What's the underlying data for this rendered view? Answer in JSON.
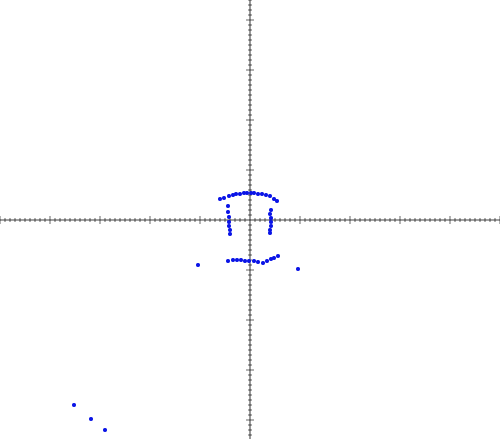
{
  "chart_data": {
    "type": "scatter",
    "xlim": [
      -250,
      250
    ],
    "ylim": [
      -219,
      220
    ],
    "tick_spacing": 5,
    "major_every": 10,
    "grid": false,
    "axes_color": "#000000",
    "point_color": "#0a14e6",
    "series": [
      {
        "points": [
          [
            -30,
            21
          ],
          [
            -26,
            22
          ],
          [
            -21,
            24
          ],
          [
            -17,
            25
          ],
          [
            -14,
            26
          ],
          [
            -10,
            26
          ],
          [
            -6,
            27
          ],
          [
            -3,
            27
          ],
          [
            1,
            27
          ],
          [
            4,
            27
          ],
          [
            8,
            26
          ],
          [
            12,
            26
          ],
          [
            16,
            25
          ],
          [
            20,
            24
          ],
          [
            24,
            21
          ],
          [
            27,
            19
          ],
          [
            -22,
            14
          ],
          [
            -22,
            8
          ],
          [
            -21,
            3
          ],
          [
            -21,
            -2
          ],
          [
            -21,
            -6
          ],
          [
            -20,
            -10
          ],
          [
            -20,
            -14
          ],
          [
            21,
            10
          ],
          [
            20,
            6
          ],
          [
            21,
            2
          ],
          [
            21,
            -2
          ],
          [
            21,
            -6
          ],
          [
            20,
            -10
          ],
          [
            20,
            -13
          ],
          [
            -22,
            -41
          ],
          [
            -17,
            -40
          ],
          [
            -13,
            -40
          ],
          [
            -9,
            -40
          ],
          [
            -5,
            -41
          ],
          [
            -1,
            -41
          ],
          [
            4,
            -41
          ],
          [
            8,
            -42
          ],
          [
            13,
            -43
          ],
          [
            17,
            -41
          ],
          [
            21,
            -39
          ],
          [
            24,
            -38
          ],
          [
            28,
            -36
          ],
          [
            -52,
            -45
          ],
          [
            48,
            -49
          ],
          [
            -176,
            -185
          ],
          [
            -159,
            -199
          ],
          [
            -145,
            -210
          ]
        ]
      }
    ]
  }
}
